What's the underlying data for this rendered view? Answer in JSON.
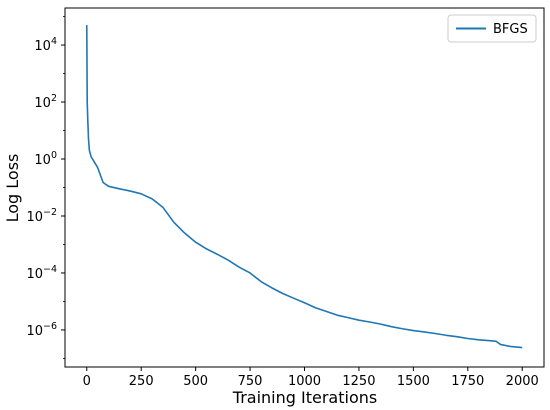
{
  "chart_data": {
    "type": "line",
    "xlabel": "Training Iterations",
    "ylabel": "Log Loss",
    "yscale": "log",
    "xlim": [
      -100,
      2100
    ],
    "ylim": [
      5e-08,
      200000.0
    ],
    "xticks": [
      0,
      250,
      500,
      750,
      1000,
      1250,
      1500,
      1750,
      2000
    ],
    "yticks": [
      {
        "value": 10000.0,
        "base": "10",
        "exp": "4"
      },
      {
        "value": 100.0,
        "base": "10",
        "exp": "2"
      },
      {
        "value": 1.0,
        "base": "10",
        "exp": "0"
      },
      {
        "value": 0.01,
        "base": "10",
        "exp": "−2"
      },
      {
        "value": 0.0001,
        "base": "10",
        "exp": "−4"
      },
      {
        "value": 1e-06,
        "base": "10",
        "exp": "−6"
      }
    ],
    "grid": false,
    "legend_position": "top-right",
    "series": [
      {
        "name": "BFGS",
        "color": "#1f77b4",
        "x": [
          0,
          2,
          5,
          8,
          12,
          20,
          30,
          50,
          75,
          100,
          150,
          200,
          250,
          300,
          350,
          400,
          450,
          500,
          550,
          600,
          650,
          700,
          750,
          800,
          850,
          900,
          950,
          1000,
          1050,
          1100,
          1150,
          1200,
          1250,
          1300,
          1350,
          1400,
          1450,
          1500,
          1550,
          1600,
          1650,
          1700,
          1750,
          1800,
          1850,
          1880,
          1900,
          1950,
          2000
        ],
        "y": [
          50000,
          100,
          20,
          5,
          2,
          1.2,
          0.9,
          0.5,
          0.15,
          0.11,
          0.09,
          0.075,
          0.06,
          0.04,
          0.02,
          0.006,
          0.0025,
          0.0012,
          0.0007,
          0.00045,
          0.00028,
          0.00016,
          0.0001,
          5e-05,
          3e-05,
          1.9e-05,
          1.3e-05,
          9e-06,
          6e-06,
          4.5e-06,
          3.3e-06,
          2.7e-06,
          2.2e-06,
          1.9e-06,
          1.6e-06,
          1.3e-06,
          1.1e-06,
          9.5e-07,
          8.5e-07,
          7.5e-07,
          6.5e-07,
          5.8e-07,
          5e-07,
          4.5e-07,
          4.2e-07,
          4e-07,
          3.1e-07,
          2.6e-07,
          2.4e-07
        ]
      }
    ]
  }
}
